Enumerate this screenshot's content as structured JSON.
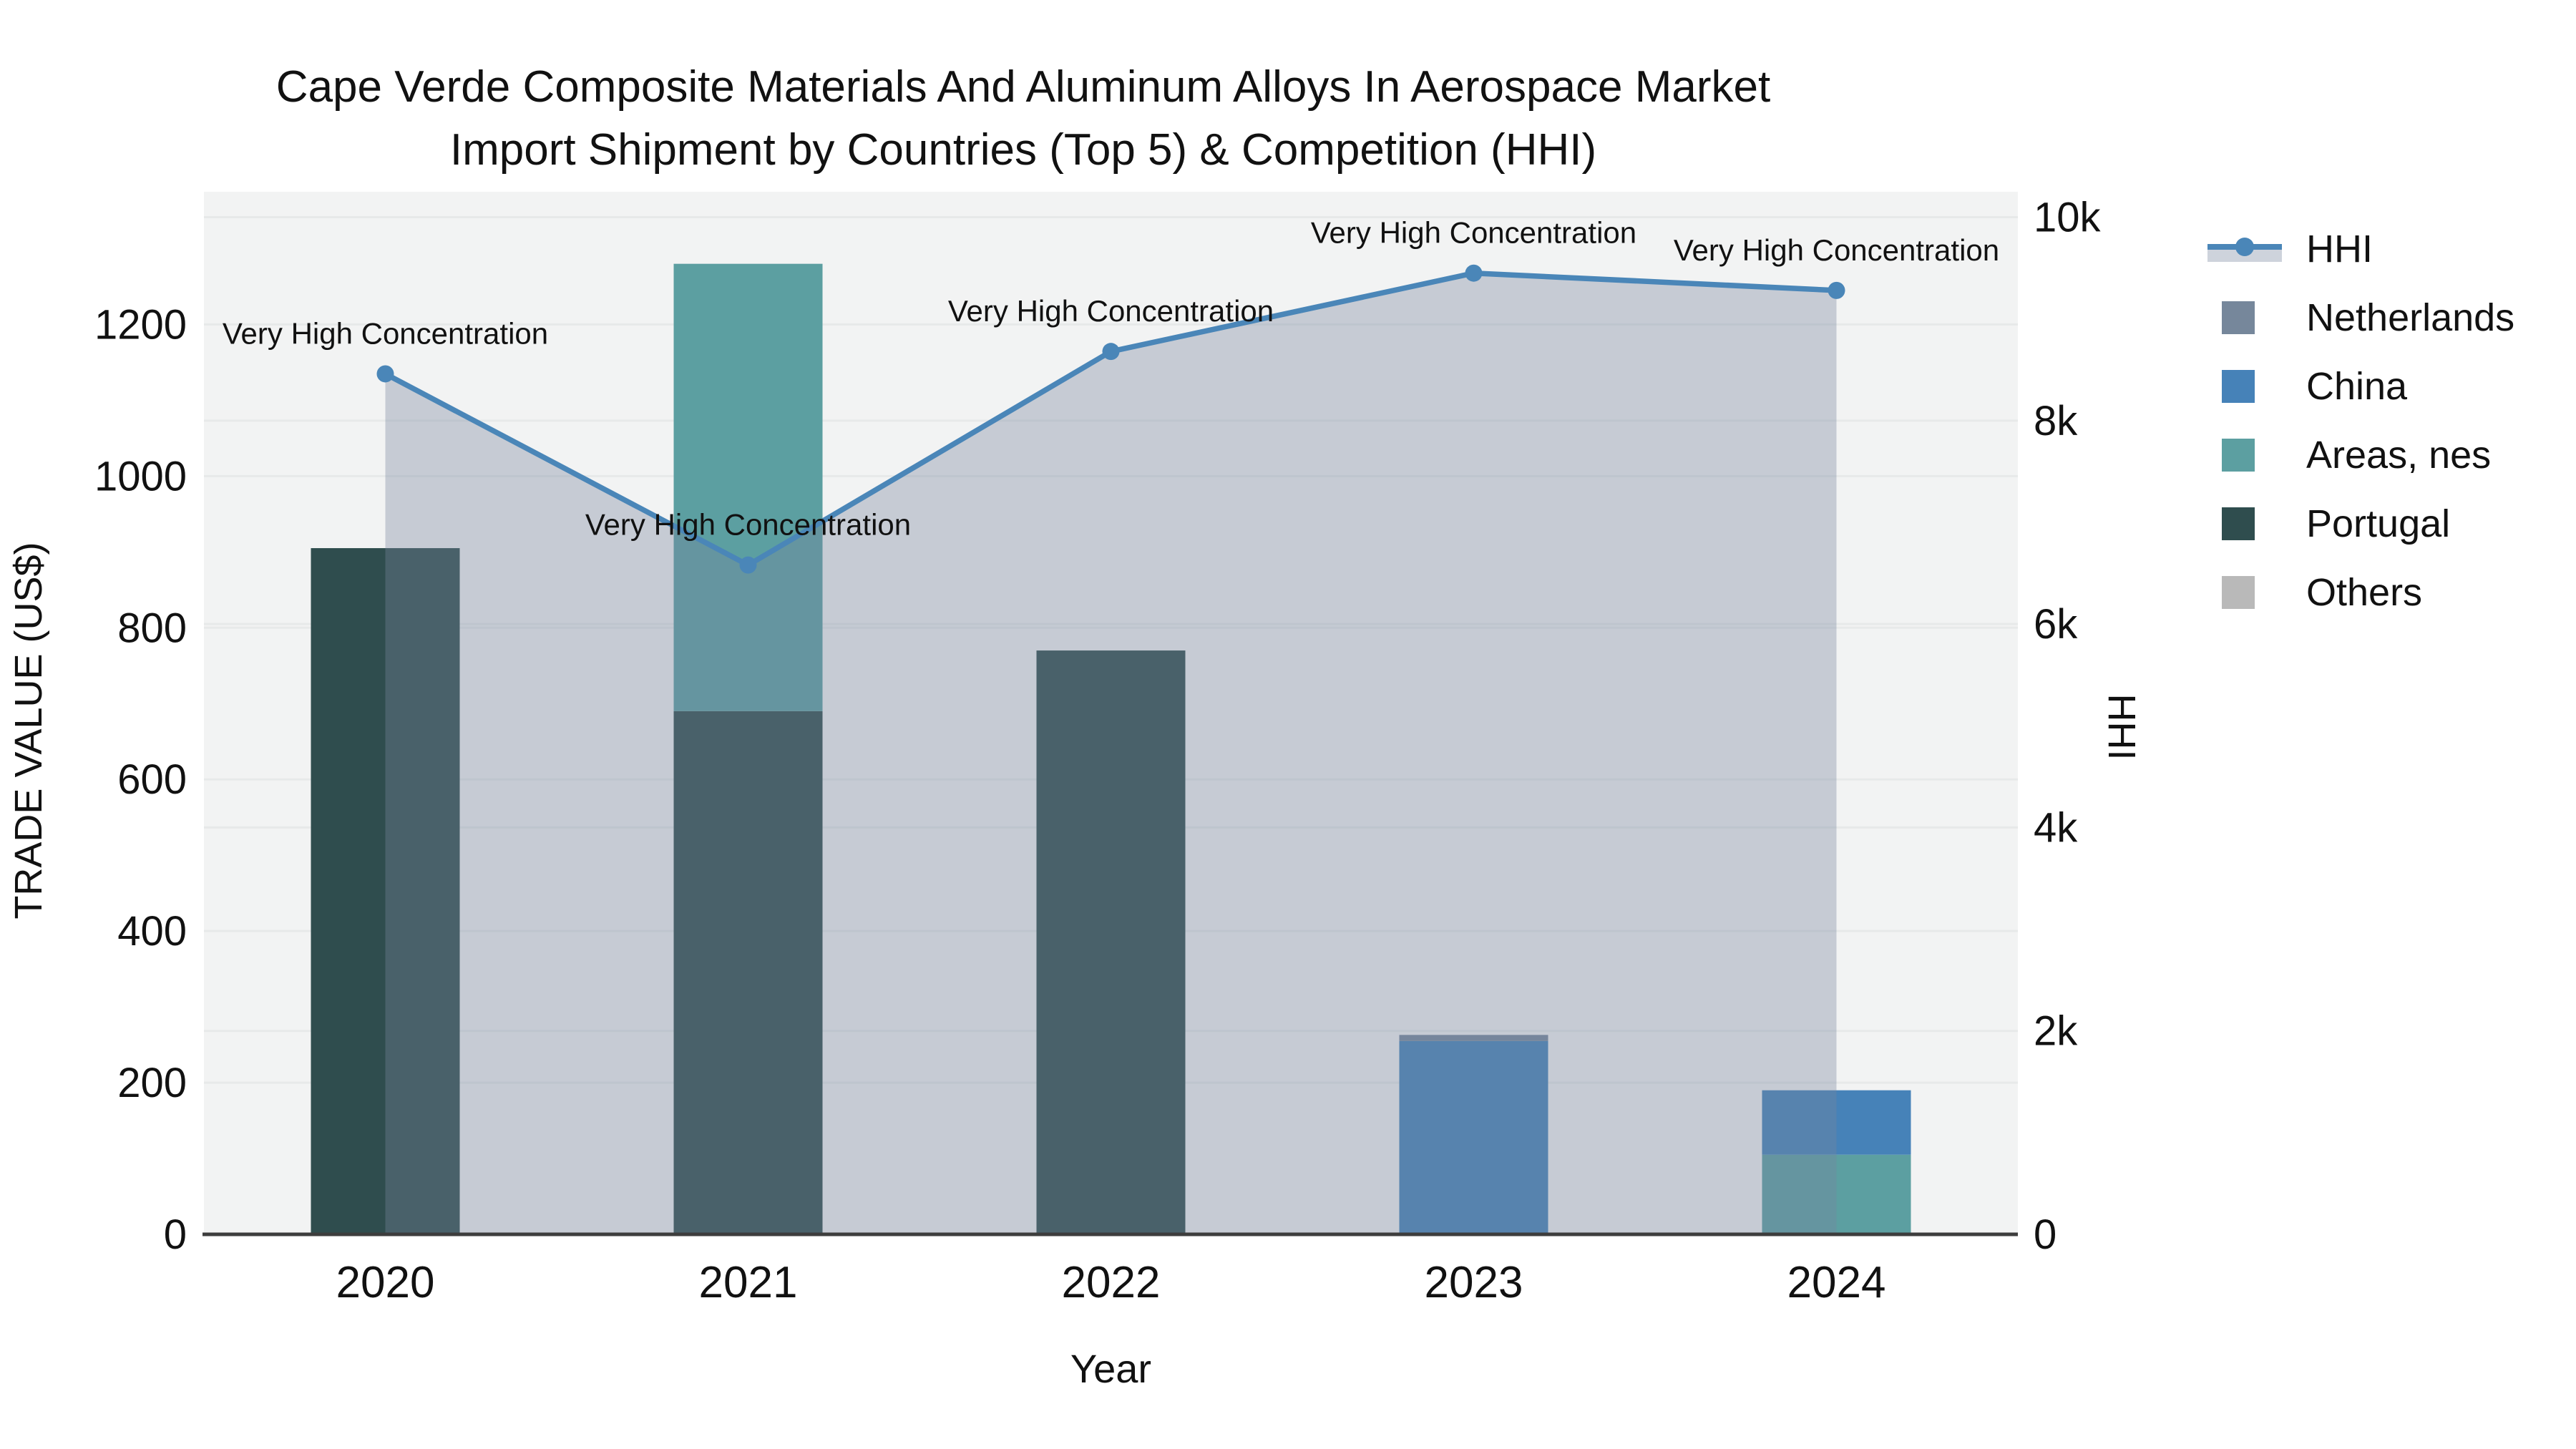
{
  "title": {
    "line1": "Cape Verde Composite Materials And Aluminum Alloys In Aerospace Market",
    "line2": "Import Shipment by Countries (Top 5) & Competition (HHI)"
  },
  "axes": {
    "y_left_title": "TRADE VALUE (US$)",
    "y_right_title": "HHI",
    "x_title": "Year"
  },
  "annotation_text": "Very High Concentration",
  "colors": {
    "plot_bg": "#F2F3F3",
    "grid": "#E7E9E9",
    "axis_line": "#3D3D3D",
    "text": "#111111",
    "hhi_line": "#4A86B8",
    "hhi_fill": "rgba(118,133,158,0.36)",
    "netherlands": "#76879B",
    "china": "#4682B8",
    "areas_nes": "#5C9FA1",
    "portugal": "#2F4D4E",
    "others": "#B9B9B9"
  },
  "legend": [
    {
      "label": "HHI",
      "type": "line",
      "color": "#4A86B8",
      "band": "#CED3DC"
    },
    {
      "label": "Netherlands",
      "type": "square",
      "color": "#76879B"
    },
    {
      "label": "China",
      "type": "square",
      "color": "#4682B8"
    },
    {
      "label": "Areas, nes",
      "type": "square",
      "color": "#5C9FA1"
    },
    {
      "label": "Portugal",
      "type": "square",
      "color": "#2F4D4E"
    },
    {
      "label": "Others",
      "type": "square",
      "color": "#B9B9B9"
    }
  ],
  "chart_data": {
    "type": "combo",
    "subtype": "stacked-bar + line-area, dual y-axis",
    "categories": [
      "2020",
      "2021",
      "2022",
      "2023",
      "2024"
    ],
    "stack_order": [
      "Portugal",
      "Areas, nes",
      "China",
      "Netherlands",
      "Others"
    ],
    "series": [
      {
        "name": "Portugal",
        "type": "bar",
        "axis": "left",
        "color": "#2F4D4E",
        "values": [
          905,
          690,
          770,
          0,
          0
        ]
      },
      {
        "name": "Areas, nes",
        "type": "bar",
        "axis": "left",
        "color": "#5C9FA1",
        "values": [
          0,
          590,
          0,
          0,
          105
        ]
      },
      {
        "name": "China",
        "type": "bar",
        "axis": "left",
        "color": "#4682B8",
        "values": [
          0,
          0,
          0,
          255,
          85
        ]
      },
      {
        "name": "Netherlands",
        "type": "bar",
        "axis": "left",
        "color": "#76879B",
        "values": [
          0,
          0,
          0,
          8,
          0
        ]
      },
      {
        "name": "Others",
        "type": "bar",
        "axis": "left",
        "color": "#B9B9B9",
        "values": [
          0,
          0,
          0,
          0,
          0
        ]
      },
      {
        "name": "HHI",
        "type": "line",
        "axis": "right",
        "color": "#4A86B8",
        "values": [
          8460,
          6580,
          8680,
          9450,
          9280
        ]
      }
    ],
    "annotations": [
      {
        "category": "2020",
        "text": "Very High Concentration"
      },
      {
        "category": "2021",
        "text": "Very High Concentration"
      },
      {
        "category": "2022",
        "text": "Very High Concentration"
      },
      {
        "category": "2023",
        "text": "Very High Concentration"
      },
      {
        "category": "2024",
        "text": "Very High Concentration"
      }
    ],
    "xlabel": "Year",
    "ylabel_left": "TRADE VALUE (US$)",
    "ylabel_right": "HHI",
    "y_left": {
      "range": [
        0,
        1375
      ],
      "ticks": [
        {
          "v": 0,
          "label": "0"
        },
        {
          "v": 200,
          "label": "200"
        },
        {
          "v": 400,
          "label": "400"
        },
        {
          "v": 600,
          "label": "600"
        },
        {
          "v": 800,
          "label": "800"
        },
        {
          "v": 1000,
          "label": "1000"
        },
        {
          "v": 1200,
          "label": "1200"
        }
      ]
    },
    "y_right": {
      "range": [
        0,
        10250
      ],
      "ticks": [
        {
          "v": 0,
          "label": "0"
        },
        {
          "v": 2000,
          "label": "2k"
        },
        {
          "v": 4000,
          "label": "4k"
        },
        {
          "v": 6000,
          "label": "6k"
        },
        {
          "v": 8000,
          "label": "8k"
        },
        {
          "v": 10000,
          "label": "10k"
        }
      ]
    },
    "grid": true,
    "legend_position": "right"
  }
}
